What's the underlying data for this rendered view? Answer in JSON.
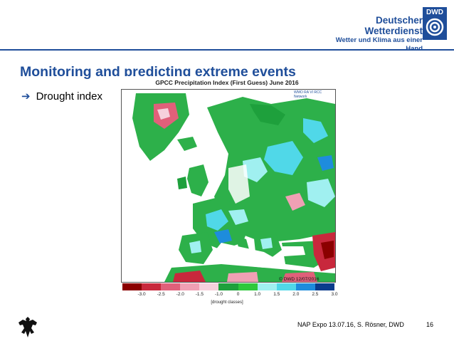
{
  "header": {
    "org_name": "Deutscher Wetterdienst",
    "org_tagline": "Wetter und Klima aus einer Hand",
    "logo_abbr": "DWD"
  },
  "slide": {
    "title": "Monitoring and predicting extreme events",
    "bullet": "Drought index"
  },
  "figure": {
    "title": "GPCC Precipitation Index (First Guess) June 2016",
    "partner_label": "WMO RA VI RCC Network",
    "copyright": "© DWD 12/07/2016",
    "legend_label": "[drought classes]",
    "legend_ticks": [
      "-3.0",
      "-2.5",
      "-2.0",
      "-1.5",
      "-1.0",
      "0",
      "1.0",
      "1.5",
      "2.0",
      "2.5",
      "3.0"
    ],
    "legend_colors": [
      "#8b0000",
      "#c8283c",
      "#e0607a",
      "#f0a0b4",
      "#f6d0dc",
      "#1ea03c",
      "#2dc83c",
      "#a0f0f0",
      "#50d8e8",
      "#1e8cdc",
      "#0a3c8c"
    ],
    "colors": {
      "dry": "#c8283c",
      "normal": "#2db04a",
      "wet": "#40c8e8",
      "very_wet": "#1e64c8",
      "sea": "#ffffff"
    }
  },
  "footer": {
    "text": "NAP Expo 13.07.16, S. Rösner, DWD",
    "page": "16"
  }
}
